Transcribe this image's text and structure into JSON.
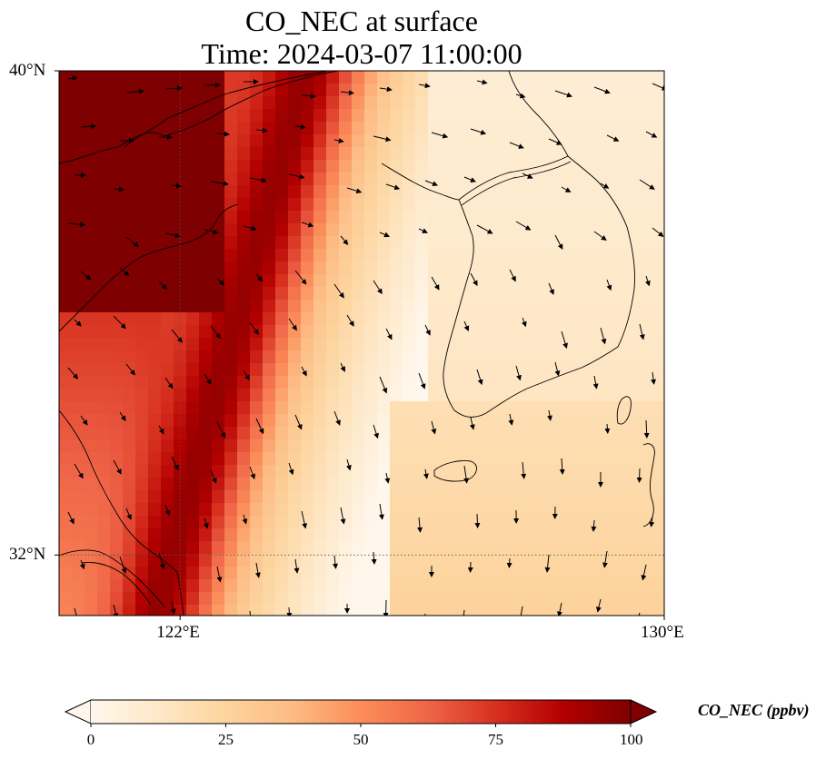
{
  "title": {
    "line1": "CO_NEC at surface",
    "line2": "Time: 2024-03-07 11:00:00"
  },
  "map": {
    "lon_range": [
      120,
      130
    ],
    "lat_range": [
      31,
      40
    ],
    "lat_ticks": [
      {
        "label": "40°N",
        "value": 40
      },
      {
        "label": "32°N",
        "value": 32
      }
    ],
    "lon_ticks": [
      {
        "label": "122°E",
        "value": 122
      },
      {
        "label": "130°E",
        "value": 130
      }
    ],
    "gridlines": "dotted",
    "features": [
      "coastline",
      "wind-vectors",
      "concentration-field"
    ]
  },
  "colorbar": {
    "label": "CO_NEC (ppbv)",
    "min": 0,
    "max": 100,
    "ticks": [
      0,
      25,
      50,
      75,
      100
    ],
    "colormap": "OrRd",
    "extend": "both",
    "colors": [
      "#fff7ec",
      "#fee8c8",
      "#fdd49e",
      "#fdbb84",
      "#fc8d59",
      "#ef6548",
      "#d7301f",
      "#b30000",
      "#7f0000"
    ]
  }
}
